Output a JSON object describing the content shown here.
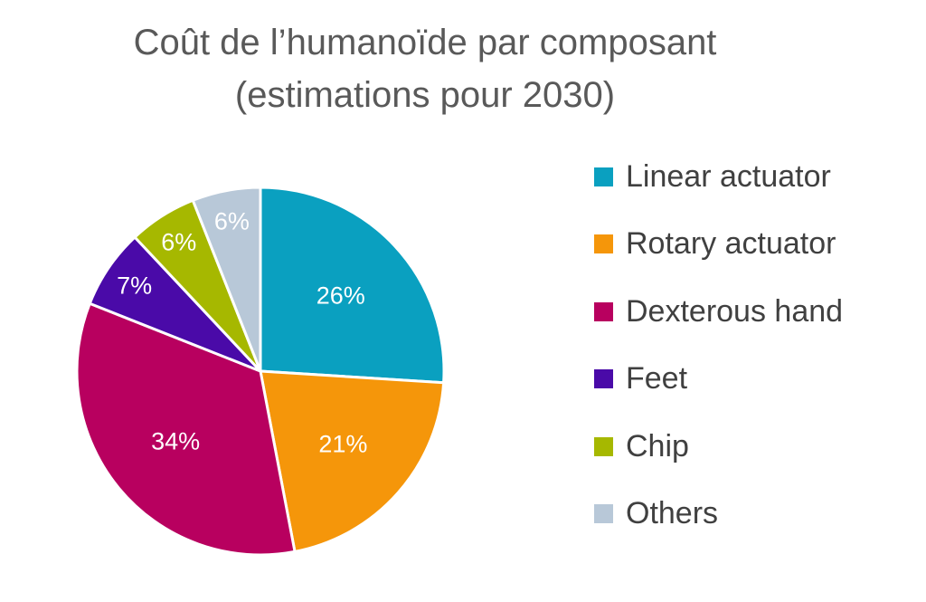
{
  "chart_data": {
    "type": "pie",
    "title_lines": [
      "Coût de l’humanoïde par composant",
      "(estimations pour 2030)"
    ],
    "categories": [
      "Linear actuator",
      "Rotary actuator",
      "Dexterous hand",
      "Feet",
      "Chip",
      "Others"
    ],
    "values": [
      26,
      21,
      34,
      7,
      6,
      6
    ],
    "data_labels": [
      "26%",
      "21%",
      "34%",
      "7%",
      "6%",
      "6%"
    ],
    "colors": [
      "#0aa0c0",
      "#f5960a",
      "#b8005f",
      "#4a0aa8",
      "#a6b800",
      "#b8c8d8"
    ],
    "label_colors": [
      "#ffffff",
      "#ffffff",
      "#ffffff",
      "#ffffff",
      "#ffffff",
      "#ffffff"
    ],
    "start": "12 o'clock, clockwise",
    "legend_position": "right"
  }
}
